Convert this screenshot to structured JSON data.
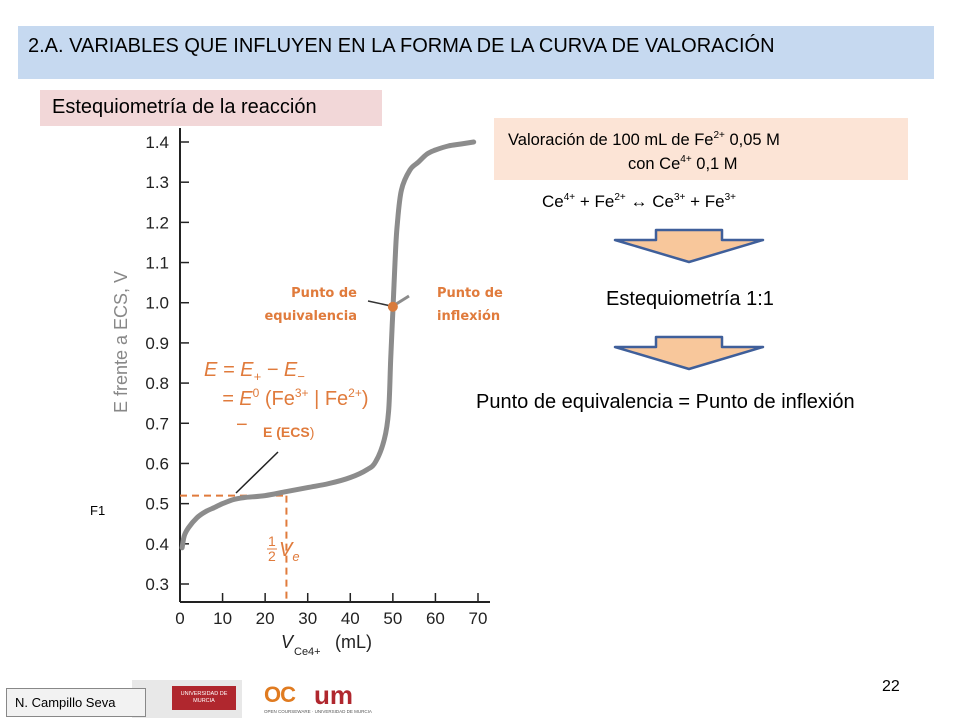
{
  "slide": {
    "title": "2.A. VARIABLES QUE INFLUYEN EN LA FORMA DE LA CURVA DE VALORACIÓN",
    "section_label": "Estequiometría de la reacción",
    "info_line1_pre": "Valoración de 100 mL de Fe",
    "info_line1_sup": "2+",
    "info_line1_post": " 0,05 M",
    "info_line2_pre": "con Ce",
    "info_line2_sup": "4+",
    "info_line2_post": " 0,1 M",
    "reaction": {
      "t1": "Ce",
      "s1": "4+",
      "t2": " + Fe",
      "s2": "2+",
      "t3": " ↔ Ce",
      "s3": "3+",
      "t4": " + Fe",
      "s4": "3+"
    },
    "stoichiometry": "Estequiometría 1:1",
    "equivalence_statement": "Punto de equivalencia  = Punto de inflexión",
    "figure_label": "F1",
    "page_number": "22",
    "author": "N. Campillo Seva",
    "logo_text": "UNIVERSIDAD DE MURCIA",
    "logo2_oc": "OC",
    "logo2_um": "um",
    "logo2_sub": "OPEN COURSEWARE · UNIVERSIDAD DE MURCIA",
    "colors": {
      "title_bg": "#c6d9f0",
      "label_bg": "#f2d7d8",
      "info_bg": "#fce4d6",
      "arrow": "#f8c79b",
      "arrow_stroke": "#3f5f9a",
      "annotation": "#e07b3c",
      "curve": "#8c8c8c"
    }
  },
  "chart_data": {
    "type": "line",
    "ylabel": "E frente a ECS, V",
    "xlabel_main": "V",
    "xlabel_sub": "Ce4+",
    "xlabel_unit": "(mL)",
    "xlim": [
      0,
      70
    ],
    "ylim": [
      0.3,
      1.4
    ],
    "x_ticks": [
      "0",
      "10",
      "20",
      "30",
      "40",
      "50",
      "60",
      "70"
    ],
    "y_ticks": [
      "0.3",
      "0.4",
      "0.5",
      "0.6",
      "0.7",
      "0.8",
      "0.9",
      "1.0",
      "1.1",
      "1.2",
      "1.3",
      "1.4"
    ],
    "series": [
      {
        "x": [
          0.5,
          1,
          2,
          4,
          6,
          8,
          10,
          12.5,
          15,
          20,
          25,
          30,
          35,
          40,
          44,
          46,
          48,
          49,
          49.5,
          50,
          50.5,
          51,
          52,
          54,
          56,
          58,
          60,
          63,
          66,
          69
        ],
        "y": [
          0.39,
          0.42,
          0.44,
          0.465,
          0.48,
          0.49,
          0.5,
          0.51,
          0.515,
          0.52,
          0.53,
          0.54,
          0.55,
          0.565,
          0.585,
          0.605,
          0.66,
          0.73,
          0.86,
          0.98,
          1.1,
          1.19,
          1.28,
          1.33,
          1.35,
          1.37,
          1.38,
          1.39,
          1.395,
          1.4
        ]
      }
    ],
    "equivalence_point": {
      "x": 50,
      "y": 0.99
    },
    "half_equivalence": {
      "x": 25,
      "y": 0.52
    },
    "annotations": {
      "punto_equivalencia": "Punto de equivalencia",
      "punto_inflexion": "Punto de inflexión",
      "eq1": "E = E+ − E−",
      "eq2": "= E0 (Fe3+ | Fe2+)",
      "eq3": "− E (ECS)",
      "half_ve": "½Ve"
    }
  }
}
